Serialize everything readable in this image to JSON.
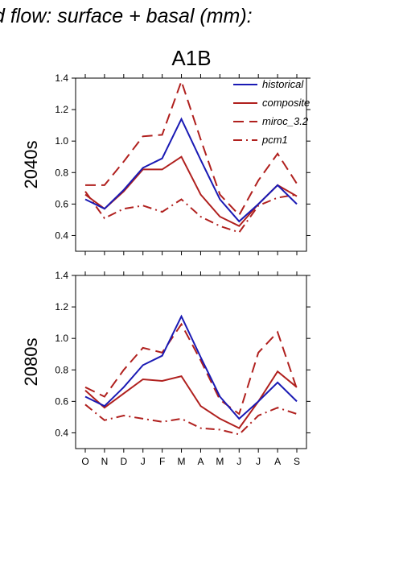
{
  "page_title": "d flow: surface + basal (mm):",
  "scenario_title": "A1B",
  "colors": {
    "historical": "#1a1ab4",
    "scenario": "#b0201e",
    "axis": "#000000"
  },
  "chart_data": [
    {
      "type": "line",
      "title": "A1B",
      "ylabel": "2040s",
      "xlabel": "",
      "categories": [
        "O",
        "N",
        "D",
        "J",
        "F",
        "M",
        "A",
        "M",
        "J",
        "J",
        "A",
        "S"
      ],
      "ylim": [
        0.3,
        1.4
      ],
      "yticks": [
        0.4,
        0.6,
        0.8,
        1.0,
        1.2,
        1.4
      ],
      "ytick_labels": [
        "0.4",
        "0.6",
        "0.8",
        "1.0",
        "1.2",
        "1.4"
      ],
      "grid": false,
      "legend_position": "top-right",
      "series": [
        {
          "name": "historical",
          "style": "solid",
          "color": "#1a1ab4",
          "values": [
            0.63,
            0.57,
            0.69,
            0.83,
            0.89,
            1.14,
            0.88,
            0.63,
            0.49,
            0.6,
            0.72,
            0.6
          ]
        },
        {
          "name": "composite",
          "style": "solid",
          "color": "#b0201e",
          "values": [
            0.66,
            0.57,
            0.68,
            0.82,
            0.82,
            0.9,
            0.66,
            0.52,
            0.46,
            0.6,
            0.72,
            0.65
          ]
        },
        {
          "name": "miroc_3.2",
          "style": "dashed",
          "color": "#b0201e",
          "values": [
            0.72,
            0.72,
            0.87,
            1.03,
            1.04,
            1.38,
            1.01,
            0.66,
            0.53,
            0.75,
            0.92,
            0.73
          ]
        },
        {
          "name": "pcm1",
          "style": "dashdot",
          "color": "#b0201e",
          "values": [
            0.68,
            0.51,
            0.57,
            0.59,
            0.55,
            0.63,
            0.52,
            0.46,
            0.42,
            0.59,
            0.64,
            0.66
          ]
        }
      ]
    },
    {
      "type": "line",
      "title": "",
      "ylabel": "2080s",
      "xlabel": "",
      "categories": [
        "O",
        "N",
        "D",
        "J",
        "F",
        "M",
        "A",
        "M",
        "J",
        "J",
        "A",
        "S"
      ],
      "ylim": [
        0.3,
        1.4
      ],
      "yticks": [
        0.4,
        0.6,
        0.8,
        1.0,
        1.2,
        1.4
      ],
      "ytick_labels": [
        "0.4",
        "0.6",
        "0.8",
        "1.0",
        "1.2",
        "1.4"
      ],
      "grid": false,
      "series": [
        {
          "name": "historical",
          "style": "solid",
          "color": "#1a1ab4",
          "values": [
            0.63,
            0.57,
            0.69,
            0.83,
            0.89,
            1.14,
            0.88,
            0.63,
            0.49,
            0.6,
            0.72,
            0.6
          ]
        },
        {
          "name": "composite",
          "style": "solid",
          "color": "#b0201e",
          "values": [
            0.67,
            0.56,
            0.65,
            0.74,
            0.73,
            0.76,
            0.57,
            0.49,
            0.43,
            0.6,
            0.79,
            0.69
          ]
        },
        {
          "name": "miroc_3.2",
          "style": "dashed",
          "color": "#b0201e",
          "values": [
            0.69,
            0.63,
            0.8,
            0.94,
            0.91,
            1.09,
            0.86,
            0.61,
            0.52,
            0.91,
            1.04,
            0.68
          ]
        },
        {
          "name": "pcm1",
          "style": "dashdot",
          "color": "#b0201e",
          "values": [
            0.58,
            0.48,
            0.51,
            0.49,
            0.47,
            0.49,
            0.43,
            0.42,
            0.39,
            0.51,
            0.56,
            0.52
          ]
        }
      ]
    }
  ]
}
